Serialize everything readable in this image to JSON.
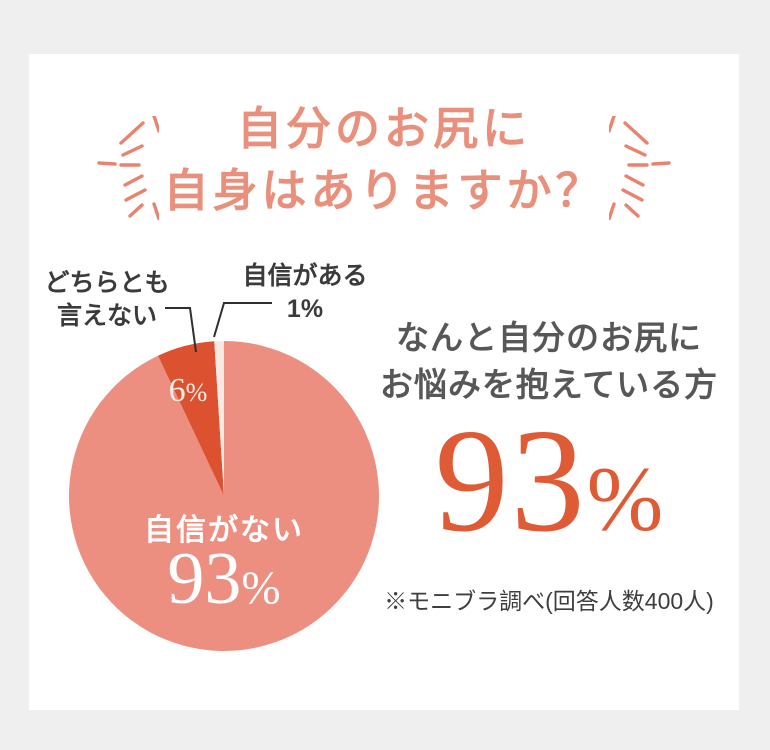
{
  "page": {
    "background_color": "#EFEFEF",
    "card_color": "#FFFFFF",
    "accent_coral": "#E9907C",
    "accent_orange": "#DE5B35"
  },
  "title": {
    "line1": "自分のお尻に",
    "line2": "自身はありますか？"
  },
  "chart_data": {
    "type": "pie",
    "title": "自分のお尻に自身はありますか？",
    "unit": "%",
    "start_angle_deg": -90,
    "direction": "clockwise",
    "legend_position": "none",
    "slices": [
      {
        "label": "自信がない",
        "value": 93,
        "color": "#EC8F80",
        "label_color": "#FFFFFF"
      },
      {
        "label": "どちらとも言えない",
        "value": 6,
        "color": "#DC5230",
        "label_color": "#FBEEE6"
      },
      {
        "label": "自信がある",
        "value": 1,
        "color": "#F8E9E2",
        "label_color": "#3B3B3B"
      }
    ],
    "source": "※モニブラ調べ(回答人数400人)"
  },
  "pie_labels": {
    "main_label": "自信がない",
    "main_value": "93",
    "main_unit": "%",
    "small_value": "6",
    "small_unit": "%",
    "callout_left_line1": "どちらとも",
    "callout_left_line2": "言えない",
    "callout_right_line1": "自信がある",
    "callout_right_value": "1%"
  },
  "right_panel": {
    "heading_line1": "なんと自分のお尻に",
    "heading_line2": "お悩みを抱えている方",
    "big_value": "93",
    "big_unit": "%",
    "source_note": "※モニブラ調べ(回答人数400人)"
  }
}
